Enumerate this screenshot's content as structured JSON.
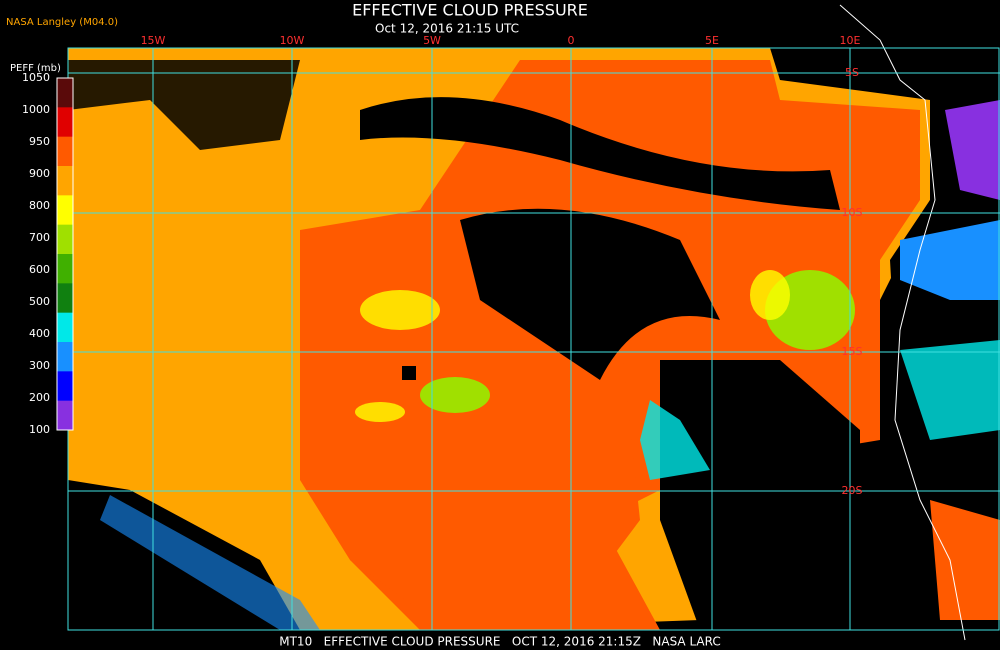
{
  "header": {
    "producer": "NASA Langley (M04.0)",
    "title": "EFFECTIVE CLOUD PRESSURE",
    "timestamp": "Oct 12, 2016 21:15 UTC"
  },
  "colorbar": {
    "label": "PEFF (mb)",
    "ticks": [
      1050,
      1000,
      950,
      900,
      800,
      700,
      600,
      500,
      400,
      300,
      200,
      100
    ],
    "colors": [
      "#5a0a0a",
      "#e00000",
      "#ff5a00",
      "#ffa500",
      "#ffff00",
      "#a0e000",
      "#40b000",
      "#108010",
      "#00e8e8",
      "#1890ff",
      "#0000ff",
      "#8830e0"
    ]
  },
  "grid": {
    "lon_labels": [
      "15W",
      "10W",
      "5W",
      "0",
      "5E",
      "10E"
    ],
    "lat_labels": [
      "5S",
      "10S",
      "15S",
      "20S"
    ]
  },
  "footer": "MT10   EFFECTIVE CLOUD PRESSURE   OCT 12, 2016 21:15Z   NASA LARC"
}
